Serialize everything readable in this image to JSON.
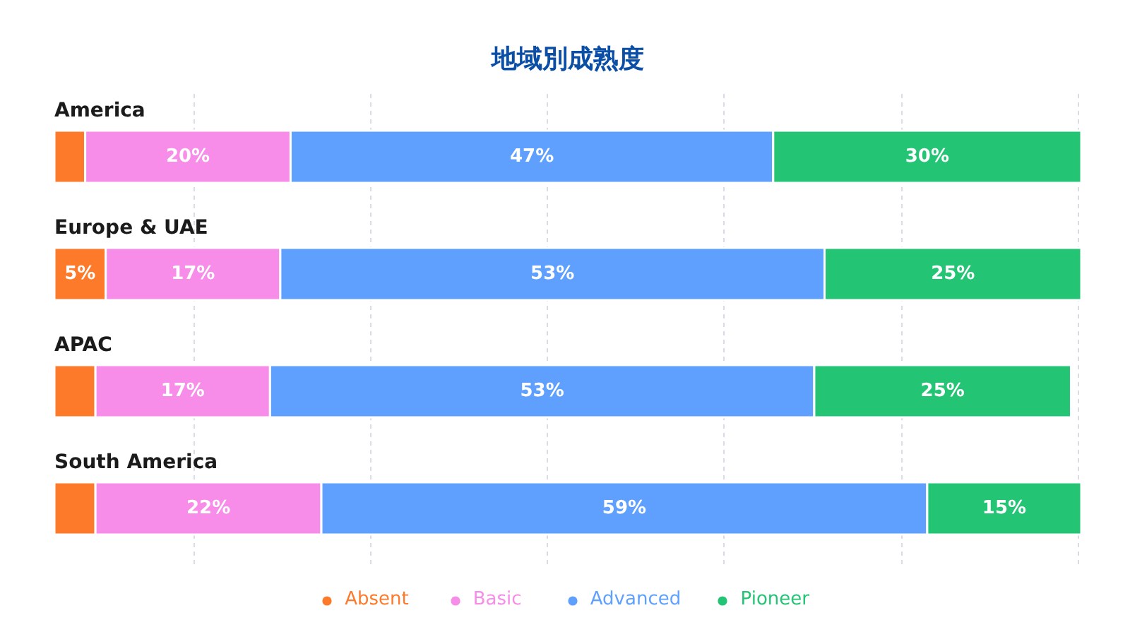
{
  "chart_data": {
    "type": "bar",
    "orientation": "horizontal",
    "stacked": true,
    "title": "地域別成熟度",
    "categories": [
      "America",
      "Europe & UAE",
      "APAC",
      "South America"
    ],
    "series": [
      {
        "name": "Absent",
        "color": "#fd7a2a",
        "values": [
          3,
          5,
          4,
          4
        ],
        "value_labels": [
          null,
          "5%",
          null,
          null
        ]
      },
      {
        "name": "Basic",
        "color": "#f78de9",
        "values": [
          20,
          17,
          17,
          22
        ],
        "value_labels": [
          "20%",
          "17%",
          "17%",
          "22%"
        ]
      },
      {
        "name": "Advanced",
        "color": "#5fa0fe",
        "values": [
          47,
          53,
          53,
          59
        ],
        "value_labels": [
          "47%",
          "53%",
          "53%",
          "59%"
        ]
      },
      {
        "name": "Pioneer",
        "color": "#23c574",
        "values": [
          30,
          25,
          25,
          15
        ],
        "value_labels": [
          "30%",
          "25%",
          "25%",
          "15%"
        ]
      }
    ],
    "xlim": [
      0,
      100
    ],
    "xticks": [
      {
        "value": 13.6,
        "label": null
      },
      {
        "value": 30.8,
        "label": null
      },
      {
        "value": 48,
        "label": null
      },
      {
        "value": 65.2,
        "label": null
      },
      {
        "value": 82.5,
        "label": null
      },
      {
        "value": 99.7,
        "label": null
      }
    ],
    "grid": "x",
    "legend": "bottom",
    "tick_labels": "y"
  }
}
